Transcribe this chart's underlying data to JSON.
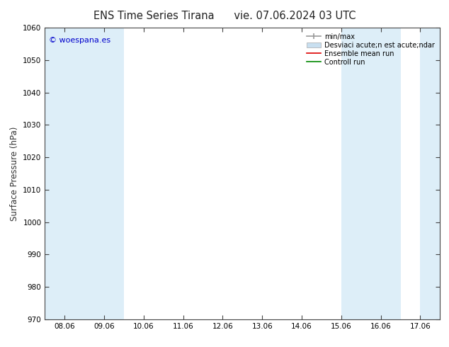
{
  "title": "ENS Time Series Tirana",
  "title2": "vie. 07.06.2024 03 UTC",
  "ylabel": "Surface Pressure (hPa)",
  "ylim": [
    970,
    1060
  ],
  "yticks": [
    970,
    980,
    990,
    1000,
    1010,
    1020,
    1030,
    1040,
    1050,
    1060
  ],
  "x_labels": [
    "08.06",
    "09.06",
    "10.06",
    "11.06",
    "12.06",
    "13.06",
    "14.06",
    "15.06",
    "16.06",
    "17.06"
  ],
  "x_positions": [
    0,
    1,
    2,
    3,
    4,
    5,
    6,
    7,
    8,
    9
  ],
  "xlim": [
    -0.5,
    9.5
  ],
  "watermark": "© woespana.es",
  "watermark_color": "#0000cc",
  "background_color": "#ffffff",
  "plot_bg_color": "#ffffff",
  "shaded_bands": [
    {
      "x_start": -0.5,
      "x_end": 1.5,
      "color": "#ddeef8"
    },
    {
      "x_start": 7.0,
      "x_end": 8.5,
      "color": "#ddeef8"
    },
    {
      "x_start": 9.0,
      "x_end": 9.5,
      "color": "#ddeef8"
    }
  ],
  "legend_labels": [
    "min/max",
    "Desviaci acute;n est acute;ndar",
    "Ensemble mean run",
    "Controll run"
  ],
  "tick_label_fontsize": 7.5,
  "title_fontsize": 10.5,
  "ylabel_fontsize": 8.5,
  "spine_color": "#444444",
  "tick_color": "#444444"
}
